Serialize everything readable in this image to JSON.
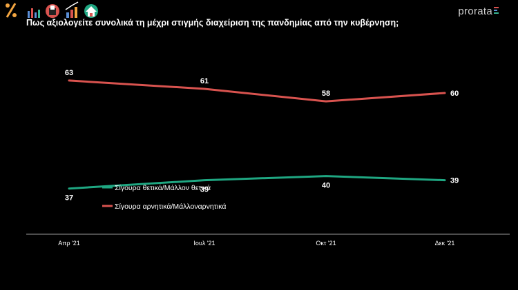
{
  "brand": {
    "name": "prorata"
  },
  "chart_data": {
    "type": "line",
    "title": "Πως αξιολογείτε συνολικά τη μέχρι στιγμής διαχείριση της πανδημίας από την κυβέρνηση;",
    "categories": [
      "Απρ '21",
      "Ιουλ '21",
      "Οκτ '21",
      "Δεκ '21"
    ],
    "series": [
      {
        "name": "Σίγουρα θετικά/Μάλλον θετικά",
        "color": "#1fa782",
        "values": [
          37,
          39,
          40,
          39
        ]
      },
      {
        "name": "Σίγουρα αρνητικά/Μάλλοναρνητικά",
        "color": "#d9534f",
        "values": [
          63,
          61,
          58,
          60
        ]
      }
    ],
    "ylim": [
      0,
      100
    ],
    "grid": false,
    "legend": "inside-left"
  }
}
